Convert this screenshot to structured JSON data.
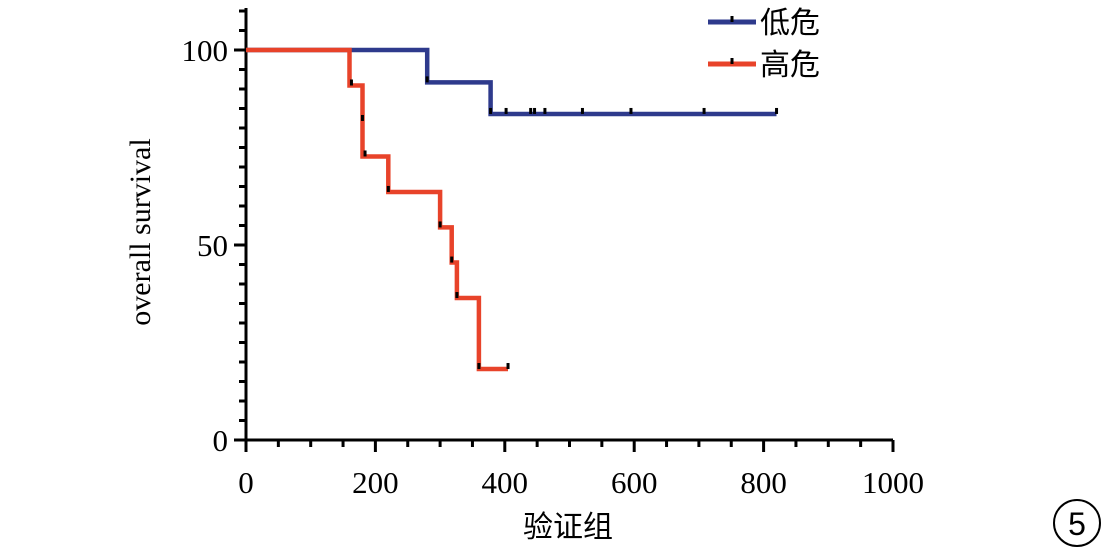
{
  "chart_data": {
    "type": "line",
    "subtype": "kaplan-meier",
    "title": "",
    "xlabel": "验证组",
    "ylabel": "overall survival",
    "xlim": [
      0,
      1000
    ],
    "ylim": [
      0,
      100
    ],
    "xticks": [
      0,
      200,
      400,
      600,
      800,
      1000
    ],
    "xtick_labels": [
      "0",
      "200",
      "400",
      "600",
      "800",
      "1000"
    ],
    "yticks": [
      0,
      50,
      100
    ],
    "ytick_labels": [
      "0",
      "50",
      "100"
    ],
    "grid": false,
    "legend": "top-right",
    "panel_label": "5",
    "series": [
      {
        "name": "低危",
        "color": "#2e3a8c",
        "steps": [
          [
            0,
            100
          ],
          [
            280,
            100
          ],
          [
            280,
            91.7
          ],
          [
            378,
            91.7
          ],
          [
            378,
            83.6
          ],
          [
            820,
            83.6
          ]
        ],
        "censored": [
          [
            280,
            91.7
          ],
          [
            378,
            83.6
          ],
          [
            402,
            83.6
          ],
          [
            440,
            83.6
          ],
          [
            446,
            83.6
          ],
          [
            462,
            83.6
          ],
          [
            520,
            83.6
          ],
          [
            595,
            83.6
          ],
          [
            708,
            83.6
          ],
          [
            820,
            83.6
          ]
        ]
      },
      {
        "name": "高危",
        "color": "#e8432a",
        "steps": [
          [
            0,
            100
          ],
          [
            160,
            100
          ],
          [
            160,
            90.9
          ],
          [
            180,
            90.9
          ],
          [
            180,
            72.7
          ],
          [
            220,
            72.7
          ],
          [
            220,
            63.6
          ],
          [
            300,
            63.6
          ],
          [
            300,
            54.5
          ],
          [
            318,
            54.5
          ],
          [
            318,
            45.5
          ],
          [
            326,
            45.5
          ],
          [
            326,
            36.4
          ],
          [
            360,
            36.4
          ],
          [
            360,
            18.2
          ],
          [
            405,
            18.2
          ]
        ],
        "censored": [
          [
            163,
            90.9
          ],
          [
            180,
            81.8
          ],
          [
            184,
            72.7
          ],
          [
            220,
            63.6
          ],
          [
            300,
            54.5
          ],
          [
            318,
            45.5
          ],
          [
            326,
            36.4
          ],
          [
            360,
            18.2
          ],
          [
            405,
            18.2
          ]
        ]
      }
    ]
  }
}
